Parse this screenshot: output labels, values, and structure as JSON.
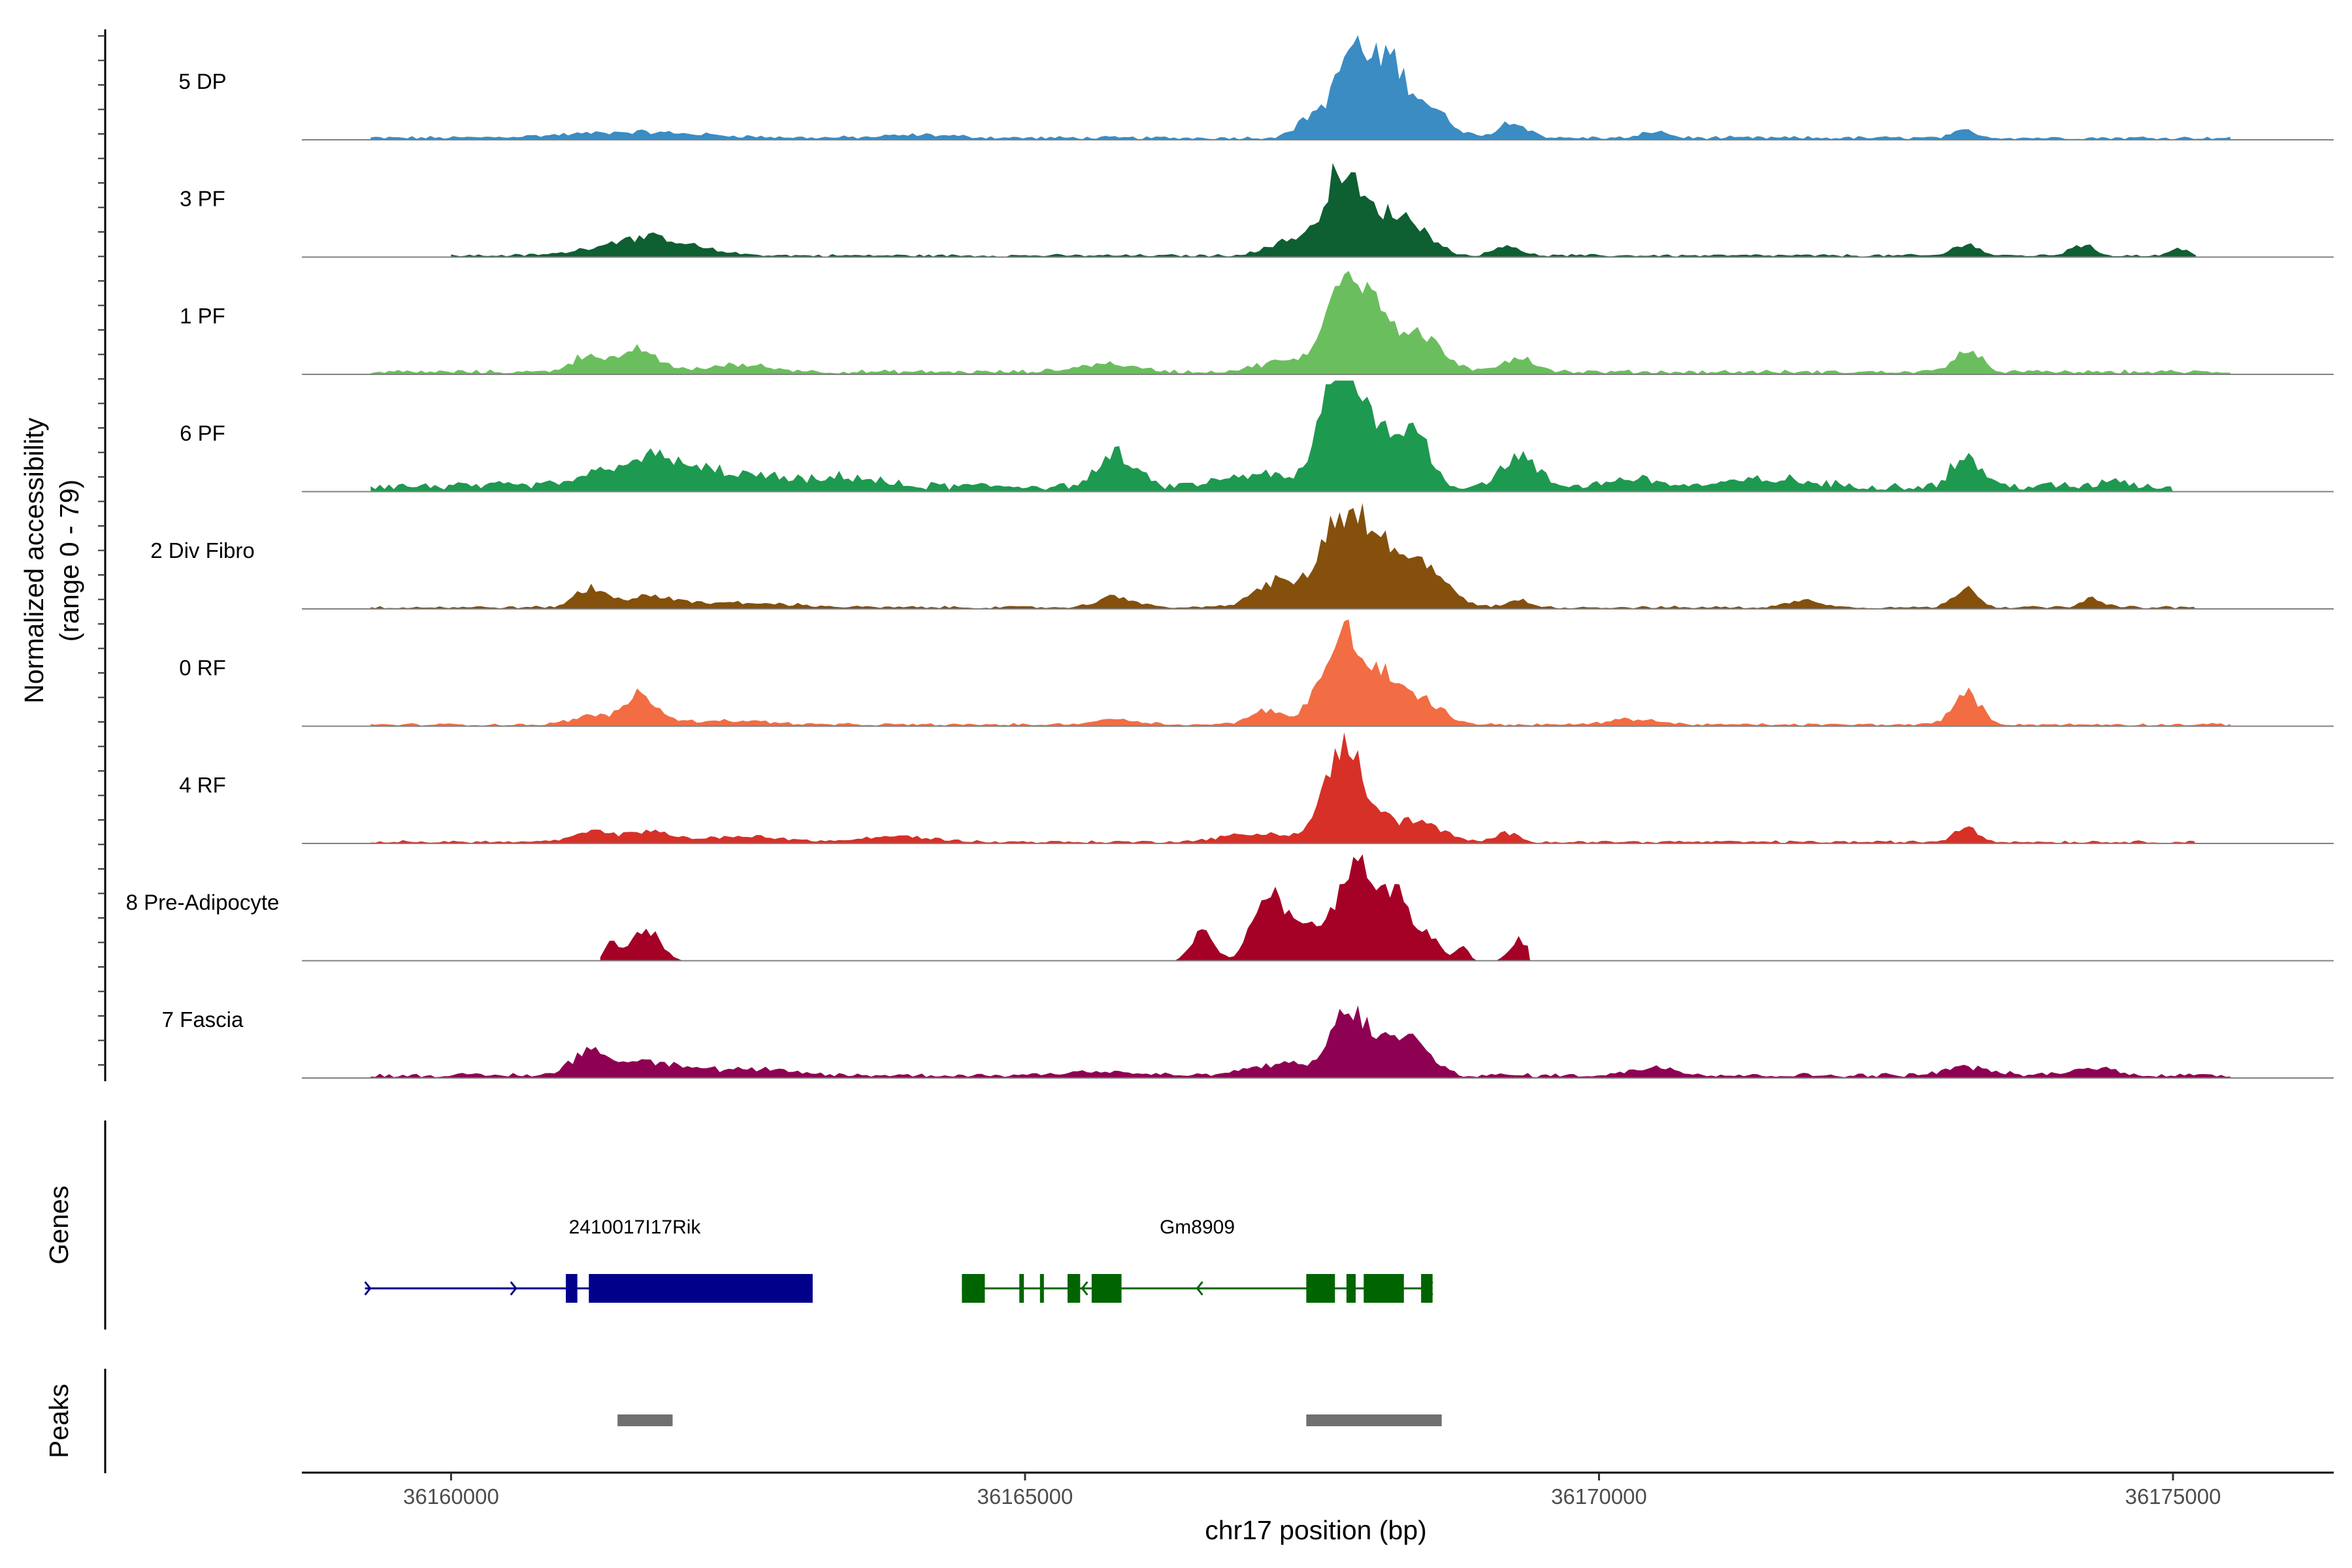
{
  "chart_data": {
    "type": "area",
    "title": "",
    "xlabel": "chr17 position (bp)",
    "ylabel": "Normalized accessibility",
    "ylabel_range": "(range 0 - 79)",
    "ylim": [
      0,
      79
    ],
    "xlim": [
      36158700,
      36176400
    ],
    "x_ticks": [
      36160000,
      36165000,
      36170000,
      36175000
    ],
    "x_tick_labels": [
      "36160000",
      "36165000",
      "36170000",
      "36175000"
    ],
    "series": [
      {
        "name": "5 DP",
        "color": "#3A8CC3",
        "extent": [
          36159300,
          36175500
        ],
        "base": 1.5,
        "peaks": [
          [
            36161600,
            600,
            4
          ],
          [
            36164100,
            300,
            2
          ],
          [
            36167550,
            150,
            18
          ],
          [
            36167850,
            120,
            60
          ],
          [
            36168150,
            130,
            50
          ],
          [
            36168450,
            200,
            25
          ],
          [
            36169250,
            120,
            12
          ],
          [
            36170500,
            100,
            5
          ],
          [
            36173200,
            100,
            5
          ]
        ]
      },
      {
        "name": "3 PF",
        "color": "#0E5F32",
        "extent": [
          36160000,
          36175200
        ],
        "base": 1.2,
        "peaks": [
          [
            36161700,
            380,
            13
          ],
          [
            36167350,
            200,
            12
          ],
          [
            36167750,
            140,
            58
          ],
          [
            36168050,
            140,
            22
          ],
          [
            36168350,
            180,
            24
          ],
          [
            36169200,
            100,
            8
          ],
          [
            36173200,
            100,
            9
          ],
          [
            36174200,
            100,
            8
          ],
          [
            36175050,
            80,
            5
          ]
        ]
      },
      {
        "name": "1 PF",
        "color": "#6BBE5E",
        "extent": [
          36159300,
          36175500
        ],
        "base": 1.8,
        "peaks": [
          [
            36161200,
            150,
            12
          ],
          [
            36161650,
            150,
            16
          ],
          [
            36162500,
            300,
            5
          ],
          [
            36165700,
            250,
            6
          ],
          [
            36167300,
            250,
            8
          ],
          [
            36167800,
            150,
            78
          ],
          [
            36168100,
            120,
            38
          ],
          [
            36168450,
            180,
            26
          ],
          [
            36169300,
            150,
            10
          ],
          [
            36173200,
            120,
            16
          ]
        ]
      },
      {
        "name": "6 PF",
        "color": "#1E9950",
        "extent": [
          36159300,
          36175000
        ],
        "base": 4,
        "peaks": [
          [
            36161700,
            380,
            20
          ],
          [
            36162600,
            400,
            7
          ],
          [
            36163500,
            200,
            6
          ],
          [
            36165800,
            150,
            22
          ],
          [
            36167050,
            300,
            8
          ],
          [
            36167750,
            150,
            95
          ],
          [
            36168100,
            120,
            42
          ],
          [
            36168400,
            120,
            45
          ],
          [
            36169300,
            150,
            20
          ],
          [
            36170300,
            200,
            6
          ],
          [
            36171500,
            300,
            5
          ],
          [
            36173200,
            120,
            22
          ],
          [
            36174500,
            100,
            5
          ]
        ]
      },
      {
        "name": "2 Div Fibro",
        "color": "#84500C",
        "extent": [
          36159300,
          36175200
        ],
        "base": 1.2,
        "peaks": [
          [
            36161200,
            120,
            12
          ],
          [
            36161700,
            300,
            7
          ],
          [
            36162600,
            400,
            3
          ],
          [
            36165800,
            150,
            8
          ],
          [
            36167200,
            200,
            18
          ],
          [
            36167750,
            180,
            62
          ],
          [
            36168050,
            150,
            38
          ],
          [
            36168450,
            200,
            32
          ],
          [
            36169300,
            100,
            5
          ],
          [
            36171800,
            150,
            5
          ],
          [
            36173200,
            100,
            15
          ],
          [
            36174300,
            100,
            6
          ]
        ]
      },
      {
        "name": "0 RF",
        "color": "#F26D43",
        "extent": [
          36159300,
          36175500
        ],
        "base": 1.2,
        "peaks": [
          [
            36161200,
            150,
            6
          ],
          [
            36161650,
            150,
            22
          ],
          [
            36162400,
            350,
            3
          ],
          [
            36165800,
            200,
            4
          ],
          [
            36167100,
            150,
            10
          ],
          [
            36167550,
            120,
            20
          ],
          [
            36167800,
            130,
            62
          ],
          [
            36168100,
            120,
            28
          ],
          [
            36168400,
            200,
            20
          ],
          [
            36170300,
            200,
            4
          ],
          [
            36173200,
            120,
            22
          ]
        ]
      },
      {
        "name": "4 RF",
        "color": "#D73027",
        "extent": [
          36159300,
          36175200
        ],
        "base": 1.2,
        "peaks": [
          [
            36161200,
            150,
            6
          ],
          [
            36161700,
            250,
            7
          ],
          [
            36162600,
            300,
            4
          ],
          [
            36163900,
            300,
            4
          ],
          [
            36167050,
            300,
            6
          ],
          [
            36167600,
            120,
            18
          ],
          [
            36167800,
            120,
            68
          ],
          [
            36168050,
            100,
            18
          ],
          [
            36168400,
            200,
            16
          ],
          [
            36169200,
            100,
            6
          ],
          [
            36173200,
            100,
            11
          ]
        ]
      },
      {
        "name": "8 Pre-Adipocyte",
        "color": "#A50026",
        "extent": [
          36161300,
          36169400
        ],
        "base": 0,
        "peaks": [
          [
            36161400,
            60,
            12
          ],
          [
            36161700,
            120,
            22
          ],
          [
            36166550,
            100,
            20
          ],
          [
            36167100,
            120,
            48
          ],
          [
            36167400,
            120,
            30
          ],
          [
            36167850,
            150,
            70
          ],
          [
            36168200,
            130,
            50
          ],
          [
            36168500,
            100,
            18
          ],
          [
            36168800,
            60,
            10
          ],
          [
            36169300,
            80,
            15
          ]
        ]
      },
      {
        "name": "7 Fascia",
        "color": "#8E0152",
        "extent": [
          36159300,
          36175500
        ],
        "base": 2,
        "peaks": [
          [
            36161200,
            150,
            16
          ],
          [
            36161700,
            300,
            10
          ],
          [
            36162600,
            350,
            4
          ],
          [
            36165600,
            300,
            3
          ],
          [
            36167200,
            250,
            8
          ],
          [
            36167800,
            150,
            38
          ],
          [
            36168100,
            200,
            20
          ],
          [
            36168400,
            150,
            18
          ],
          [
            36170500,
            200,
            6
          ],
          [
            36173200,
            200,
            6
          ],
          [
            36174300,
            200,
            5
          ]
        ]
      }
    ],
    "genes": [
      {
        "name": "2410017I17Rik",
        "strand": "+",
        "color": "#00008B",
        "span": [
          36159250,
          36163150
        ],
        "label_pos": 36161600,
        "exons": [
          [
            36161000,
            36161100
          ],
          [
            36161200,
            36163150
          ]
        ]
      },
      {
        "name": "Gm8909",
        "strand": "-",
        "color": "#006400",
        "span": [
          36164450,
          36168550
        ],
        "label_pos": 36166500,
        "exons": [
          [
            36164450,
            36164650
          ],
          [
            36164950,
            36164990
          ],
          [
            36165130,
            36165160
          ],
          [
            36165370,
            36165480
          ],
          [
            36165580,
            36165840
          ],
          [
            36167450,
            36167700
          ],
          [
            36167800,
            36167880
          ],
          [
            36167950,
            36168300
          ],
          [
            36168450,
            36168550
          ]
        ]
      }
    ],
    "peaks": [
      [
        36161450,
        36161930
      ],
      [
        36167450,
        36168630
      ]
    ],
    "peaks_color": "#707070"
  },
  "panels": {
    "genes_label": "Genes",
    "peaks_label": "Peaks"
  }
}
